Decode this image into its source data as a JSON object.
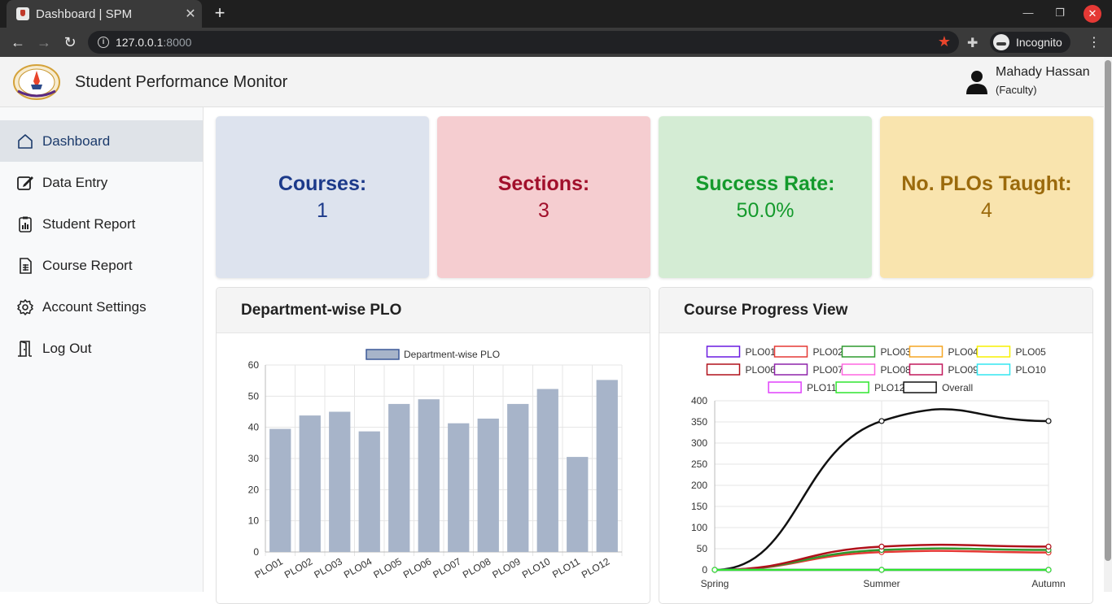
{
  "browser": {
    "tab_title": "Dashboard | SPM",
    "tab_close": "✕",
    "new_tab": "+",
    "url_host": "127.0.0.1",
    "url_port": ":8000",
    "profile_label": "Incognito"
  },
  "header": {
    "app_title": "Student Performance Monitor",
    "user_name": "Mahady Hassan",
    "user_role": "(Faculty)"
  },
  "sidebar": {
    "items": [
      {
        "label": "Dashboard",
        "icon": "home-icon",
        "active": true
      },
      {
        "label": "Data Entry",
        "icon": "edit-icon",
        "active": false
      },
      {
        "label": "Student Report",
        "icon": "report-icon",
        "active": false
      },
      {
        "label": "Course Report",
        "icon": "spreadsheet-icon",
        "active": false
      },
      {
        "label": "Account Settings",
        "icon": "gear-icon",
        "active": false
      },
      {
        "label": "Log Out",
        "icon": "door-icon",
        "active": false
      }
    ]
  },
  "cards": [
    {
      "title": "Courses:",
      "value": "1",
      "bg": "#dde3ee",
      "color": "#1c3a8a"
    },
    {
      "title": "Sections:",
      "value": "3",
      "bg": "#f5cdd0",
      "color": "#a10f2b"
    },
    {
      "title": "Success Rate:",
      "value": "50.0%",
      "bg": "#d4ecd4",
      "color": "#149a2c"
    },
    {
      "title": "No. PLOs Taught:",
      "value": "4",
      "bg": "#f9e4ae",
      "color": "#9b6a0c"
    }
  ],
  "panels": {
    "left_title": "Department-wise PLO",
    "right_title": "Course Progress View"
  },
  "chart_data": [
    {
      "type": "bar",
      "legend_position": "top",
      "categories": [
        "PLO01",
        "PLO02",
        "PLO03",
        "PLO04",
        "PLO05",
        "PLO06",
        "PLO07",
        "PLO08",
        "PLO09",
        "PLO10",
        "PLO11",
        "PLO12"
      ],
      "series": [
        {
          "name": "Department-wise PLO",
          "values": [
            39.5,
            43.8,
            45,
            38.7,
            47.5,
            49,
            41.3,
            42.8,
            47.5,
            52.3,
            30.5,
            55.2
          ]
        }
      ],
      "ylim": [
        0,
        60
      ],
      "yticks": [
        0,
        10,
        20,
        30,
        40,
        50,
        60
      ],
      "grid": true,
      "bar_color": "#a7b4c9",
      "legend_border": "#3b5998"
    },
    {
      "type": "line",
      "legend_position": "top",
      "x": [
        "Spring",
        "Summer",
        "Autumn"
      ],
      "ylim": [
        0,
        400
      ],
      "yticks": [
        0,
        50,
        100,
        150,
        200,
        250,
        300,
        350,
        400
      ],
      "grid": true,
      "series": [
        {
          "name": "PLO01",
          "color": "#6a1be0",
          "values": [
            0,
            0,
            0
          ]
        },
        {
          "name": "PLO02",
          "color": "#e53935",
          "values": [
            0,
            42,
            41
          ]
        },
        {
          "name": "PLO03",
          "color": "#2e9a2e",
          "values": [
            0,
            47,
            47
          ]
        },
        {
          "name": "PLO04",
          "color": "#f5a623",
          "values": [
            0,
            0,
            0
          ]
        },
        {
          "name": "PLO05",
          "color": "#f7f000",
          "values": [
            0,
            0,
            0
          ]
        },
        {
          "name": "PLO06",
          "color": "#b0101a",
          "values": [
            0,
            55,
            55
          ]
        },
        {
          "name": "PLO07",
          "color": "#8e24aa",
          "values": [
            0,
            0,
            0
          ]
        },
        {
          "name": "PLO08",
          "color": "#ff66e0",
          "values": [
            0,
            0,
            0
          ]
        },
        {
          "name": "PLO09",
          "color": "#c2185b",
          "values": [
            0,
            0,
            0
          ]
        },
        {
          "name": "PLO10",
          "color": "#33e6f0",
          "values": [
            0,
            0,
            0
          ]
        },
        {
          "name": "PLO11",
          "color": "#e040fb",
          "values": [
            0,
            0,
            0
          ]
        },
        {
          "name": "PLO12",
          "color": "#2ee62e",
          "values": [
            0,
            0,
            0
          ]
        },
        {
          "name": "Overall",
          "color": "#111111",
          "values": [
            0,
            352,
            352
          ]
        }
      ]
    }
  ]
}
